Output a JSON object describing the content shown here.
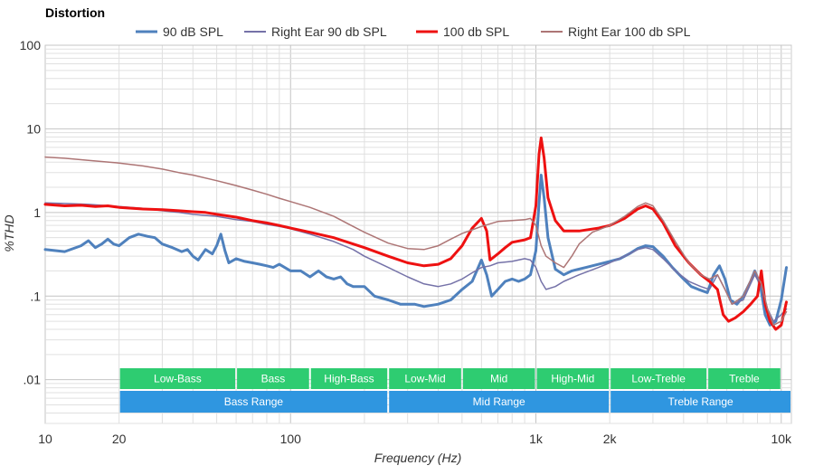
{
  "chart_data": {
    "type": "line",
    "title": "Distortion",
    "xlabel": "Frequency (Hz)",
    "ylabel": "%THD",
    "x_scale": "log",
    "y_scale": "log",
    "xlim": [
      10,
      11000
    ],
    "ylim": [
      0.003,
      100
    ],
    "x_ticks": [
      {
        "value": 10,
        "label": "10"
      },
      {
        "value": 20,
        "label": "20"
      },
      {
        "value": 100,
        "label": "100"
      },
      {
        "value": 1000,
        "label": "1k"
      },
      {
        "value": 2000,
        "label": "2k"
      },
      {
        "value": 10000,
        "label": "10k"
      }
    ],
    "y_ticks": [
      {
        "value": 100,
        "label": "100"
      },
      {
        "value": 10,
        "label": "10"
      },
      {
        "value": 1,
        "label": "1"
      },
      {
        "value": 0.1,
        "label": ".1"
      },
      {
        "value": 0.01,
        "label": ".01"
      }
    ],
    "grid": true,
    "legend_position": "top-center",
    "series": [
      {
        "name": "90 dB SPL",
        "color": "#4f81bd",
        "width": 3,
        "points": [
          [
            10,
            0.36
          ],
          [
            12,
            0.34
          ],
          [
            14,
            0.4
          ],
          [
            15,
            0.46
          ],
          [
            16,
            0.38
          ],
          [
            17,
            0.42
          ],
          [
            18,
            0.48
          ],
          [
            19,
            0.42
          ],
          [
            20,
            0.4
          ],
          [
            22,
            0.5
          ],
          [
            24,
            0.55
          ],
          [
            26,
            0.52
          ],
          [
            28,
            0.5
          ],
          [
            30,
            0.42
          ],
          [
            33,
            0.38
          ],
          [
            36,
            0.34
          ],
          [
            38,
            0.36
          ],
          [
            40,
            0.3
          ],
          [
            42,
            0.27
          ],
          [
            45,
            0.36
          ],
          [
            48,
            0.32
          ],
          [
            50,
            0.4
          ],
          [
            52,
            0.55
          ],
          [
            54,
            0.35
          ],
          [
            56,
            0.25
          ],
          [
            60,
            0.28
          ],
          [
            65,
            0.26
          ],
          [
            70,
            0.25
          ],
          [
            75,
            0.24
          ],
          [
            80,
            0.23
          ],
          [
            85,
            0.22
          ],
          [
            90,
            0.24
          ],
          [
            100,
            0.2
          ],
          [
            110,
            0.2
          ],
          [
            120,
            0.17
          ],
          [
            130,
            0.2
          ],
          [
            140,
            0.17
          ],
          [
            150,
            0.16
          ],
          [
            160,
            0.17
          ],
          [
            170,
            0.14
          ],
          [
            180,
            0.13
          ],
          [
            200,
            0.13
          ],
          [
            220,
            0.1
          ],
          [
            250,
            0.09
          ],
          [
            280,
            0.08
          ],
          [
            320,
            0.08
          ],
          [
            350,
            0.075
          ],
          [
            400,
            0.08
          ],
          [
            450,
            0.09
          ],
          [
            500,
            0.12
          ],
          [
            550,
            0.15
          ],
          [
            600,
            0.27
          ],
          [
            630,
            0.18
          ],
          [
            660,
            0.1
          ],
          [
            700,
            0.12
          ],
          [
            750,
            0.15
          ],
          [
            800,
            0.16
          ],
          [
            850,
            0.15
          ],
          [
            900,
            0.16
          ],
          [
            950,
            0.18
          ],
          [
            1000,
            0.35
          ],
          [
            1030,
            1.3
          ],
          [
            1050,
            2.8
          ],
          [
            1080,
            1.5
          ],
          [
            1120,
            0.5
          ],
          [
            1200,
            0.21
          ],
          [
            1300,
            0.18
          ],
          [
            1400,
            0.2
          ],
          [
            1600,
            0.22
          ],
          [
            1800,
            0.24
          ],
          [
            2000,
            0.26
          ],
          [
            2200,
            0.28
          ],
          [
            2400,
            0.32
          ],
          [
            2600,
            0.37
          ],
          [
            2800,
            0.4
          ],
          [
            3000,
            0.39
          ],
          [
            3300,
            0.3
          ],
          [
            3600,
            0.22
          ],
          [
            4000,
            0.16
          ],
          [
            4300,
            0.13
          ],
          [
            4600,
            0.12
          ],
          [
            5000,
            0.11
          ],
          [
            5300,
            0.18
          ],
          [
            5600,
            0.23
          ],
          [
            5900,
            0.16
          ],
          [
            6200,
            0.09
          ],
          [
            6600,
            0.08
          ],
          [
            7000,
            0.1
          ],
          [
            7500,
            0.15
          ],
          [
            7800,
            0.2
          ],
          [
            8200,
            0.14
          ],
          [
            8600,
            0.06
          ],
          [
            9000,
            0.045
          ],
          [
            9500,
            0.05
          ],
          [
            10000,
            0.09
          ],
          [
            10500,
            0.22
          ]
        ]
      },
      {
        "name": "Right Ear 90 db SPL",
        "color": "#7572a8",
        "width": 1.5,
        "points": [
          [
            10,
            1.3
          ],
          [
            12,
            1.28
          ],
          [
            15,
            1.25
          ],
          [
            20,
            1.18
          ],
          [
            25,
            1.12
          ],
          [
            30,
            1.05
          ],
          [
            35,
            1.0
          ],
          [
            40,
            0.95
          ],
          [
            50,
            0.9
          ],
          [
            60,
            0.82
          ],
          [
            70,
            0.78
          ],
          [
            80,
            0.72
          ],
          [
            90,
            0.68
          ],
          [
            100,
            0.64
          ],
          [
            120,
            0.55
          ],
          [
            150,
            0.45
          ],
          [
            180,
            0.36
          ],
          [
            200,
            0.3
          ],
          [
            250,
            0.22
          ],
          [
            300,
            0.17
          ],
          [
            350,
            0.14
          ],
          [
            400,
            0.13
          ],
          [
            450,
            0.14
          ],
          [
            500,
            0.16
          ],
          [
            550,
            0.19
          ],
          [
            600,
            0.22
          ],
          [
            650,
            0.23
          ],
          [
            700,
            0.25
          ],
          [
            800,
            0.26
          ],
          [
            900,
            0.28
          ],
          [
            950,
            0.27
          ],
          [
            1000,
            0.22
          ],
          [
            1050,
            0.15
          ],
          [
            1100,
            0.12
          ],
          [
            1200,
            0.13
          ],
          [
            1300,
            0.15
          ],
          [
            1500,
            0.18
          ],
          [
            1800,
            0.22
          ],
          [
            2000,
            0.25
          ],
          [
            2300,
            0.3
          ],
          [
            2600,
            0.36
          ],
          [
            2800,
            0.38
          ],
          [
            3000,
            0.36
          ],
          [
            3300,
            0.28
          ],
          [
            3700,
            0.2
          ],
          [
            4200,
            0.15
          ],
          [
            4700,
            0.13
          ],
          [
            5100,
            0.12
          ],
          [
            5500,
            0.18
          ],
          [
            5900,
            0.12
          ],
          [
            6300,
            0.08
          ],
          [
            7000,
            0.09
          ],
          [
            7800,
            0.18
          ],
          [
            8300,
            0.13
          ],
          [
            8800,
            0.07
          ],
          [
            9300,
            0.05
          ],
          [
            10000,
            0.06
          ],
          [
            10500,
            0.07
          ]
        ]
      },
      {
        "name": "100 db SPL",
        "color": "#ee1111",
        "width": 3,
        "points": [
          [
            10,
            1.25
          ],
          [
            12,
            1.2
          ],
          [
            14,
            1.22
          ],
          [
            16,
            1.18
          ],
          [
            18,
            1.2
          ],
          [
            20,
            1.15
          ],
          [
            25,
            1.1
          ],
          [
            30,
            1.08
          ],
          [
            35,
            1.05
          ],
          [
            40,
            1.02
          ],
          [
            45,
            1.0
          ],
          [
            50,
            0.95
          ],
          [
            60,
            0.88
          ],
          [
            70,
            0.8
          ],
          [
            80,
            0.75
          ],
          [
            90,
            0.7
          ],
          [
            100,
            0.65
          ],
          [
            120,
            0.58
          ],
          [
            150,
            0.5
          ],
          [
            180,
            0.42
          ],
          [
            200,
            0.38
          ],
          [
            250,
            0.3
          ],
          [
            300,
            0.25
          ],
          [
            350,
            0.23
          ],
          [
            400,
            0.24
          ],
          [
            450,
            0.28
          ],
          [
            500,
            0.4
          ],
          [
            550,
            0.65
          ],
          [
            600,
            0.85
          ],
          [
            630,
            0.6
          ],
          [
            650,
            0.27
          ],
          [
            700,
            0.32
          ],
          [
            750,
            0.38
          ],
          [
            800,
            0.44
          ],
          [
            900,
            0.47
          ],
          [
            950,
            0.5
          ],
          [
            1000,
            1.2
          ],
          [
            1030,
            5.0
          ],
          [
            1050,
            7.8
          ],
          [
            1080,
            4.5
          ],
          [
            1120,
            1.5
          ],
          [
            1200,
            0.8
          ],
          [
            1300,
            0.6
          ],
          [
            1500,
            0.6
          ],
          [
            1800,
            0.65
          ],
          [
            2000,
            0.7
          ],
          [
            2300,
            0.85
          ],
          [
            2600,
            1.1
          ],
          [
            2800,
            1.2
          ],
          [
            3000,
            1.1
          ],
          [
            3300,
            0.75
          ],
          [
            3700,
            0.4
          ],
          [
            4200,
            0.25
          ],
          [
            4700,
            0.18
          ],
          [
            5100,
            0.15
          ],
          [
            5500,
            0.12
          ],
          [
            5800,
            0.06
          ],
          [
            6100,
            0.05
          ],
          [
            6500,
            0.055
          ],
          [
            7000,
            0.065
          ],
          [
            7500,
            0.08
          ],
          [
            8000,
            0.1
          ],
          [
            8300,
            0.2
          ],
          [
            8600,
            0.08
          ],
          [
            9000,
            0.05
          ],
          [
            9500,
            0.04
          ],
          [
            10000,
            0.045
          ],
          [
            10500,
            0.085
          ]
        ]
      },
      {
        "name": "Right Ear 100 db SPL",
        "color": "#ad7575",
        "width": 1.5,
        "points": [
          [
            10,
            4.6
          ],
          [
            12,
            4.45
          ],
          [
            15,
            4.2
          ],
          [
            20,
            3.9
          ],
          [
            25,
            3.6
          ],
          [
            30,
            3.3
          ],
          [
            35,
            3.0
          ],
          [
            40,
            2.8
          ],
          [
            50,
            2.4
          ],
          [
            60,
            2.1
          ],
          [
            70,
            1.85
          ],
          [
            80,
            1.65
          ],
          [
            90,
            1.48
          ],
          [
            100,
            1.35
          ],
          [
            120,
            1.15
          ],
          [
            150,
            0.9
          ],
          [
            180,
            0.68
          ],
          [
            200,
            0.58
          ],
          [
            250,
            0.43
          ],
          [
            300,
            0.37
          ],
          [
            350,
            0.36
          ],
          [
            400,
            0.4
          ],
          [
            450,
            0.48
          ],
          [
            500,
            0.56
          ],
          [
            550,
            0.62
          ],
          [
            600,
            0.68
          ],
          [
            700,
            0.78
          ],
          [
            800,
            0.8
          ],
          [
            900,
            0.82
          ],
          [
            950,
            0.85
          ],
          [
            1000,
            0.7
          ],
          [
            1050,
            0.4
          ],
          [
            1100,
            0.3
          ],
          [
            1200,
            0.25
          ],
          [
            1300,
            0.22
          ],
          [
            1400,
            0.3
          ],
          [
            1500,
            0.42
          ],
          [
            1700,
            0.58
          ],
          [
            2000,
            0.7
          ],
          [
            2300,
            0.9
          ],
          [
            2600,
            1.18
          ],
          [
            2800,
            1.3
          ],
          [
            3000,
            1.2
          ],
          [
            3300,
            0.8
          ],
          [
            3700,
            0.45
          ],
          [
            4200,
            0.25
          ],
          [
            4700,
            0.18
          ],
          [
            5100,
            0.16
          ],
          [
            5500,
            0.18
          ],
          [
            5900,
            0.12
          ],
          [
            6300,
            0.08
          ],
          [
            7000,
            0.1
          ],
          [
            7800,
            0.2
          ],
          [
            8300,
            0.14
          ],
          [
            8800,
            0.07
          ],
          [
            9300,
            0.045
          ],
          [
            10000,
            0.05
          ],
          [
            10500,
            0.065
          ]
        ]
      }
    ],
    "bands": [
      {
        "label": "Low-Bass",
        "from": 20,
        "to": 60,
        "row": 1,
        "color": "#2ecc71"
      },
      {
        "label": "Bass",
        "from": 60,
        "to": 120,
        "row": 1,
        "color": "#2ecc71"
      },
      {
        "label": "High-Bass",
        "from": 120,
        "to": 250,
        "row": 1,
        "color": "#2ecc71"
      },
      {
        "label": "Low-Mid",
        "from": 250,
        "to": 500,
        "row": 1,
        "color": "#2ecc71"
      },
      {
        "label": "Mid",
        "from": 500,
        "to": 1000,
        "row": 1,
        "color": "#2ecc71"
      },
      {
        "label": "High-Mid",
        "from": 1000,
        "to": 2000,
        "row": 1,
        "color": "#2ecc71"
      },
      {
        "label": "Low-Treble",
        "from": 2000,
        "to": 5000,
        "row": 1,
        "color": "#2ecc71"
      },
      {
        "label": "Treble",
        "from": 5000,
        "to": 10000,
        "row": 1,
        "color": "#2ecc71"
      },
      {
        "label": "Bass Range",
        "from": 20,
        "to": 250,
        "row": 2,
        "color": "#2f96e0"
      },
      {
        "label": "Mid Range",
        "from": 250,
        "to": 2000,
        "row": 2,
        "color": "#2f96e0"
      },
      {
        "label": "Treble Range",
        "from": 2000,
        "to": 11000,
        "row": 2,
        "color": "#2f96e0"
      }
    ]
  }
}
